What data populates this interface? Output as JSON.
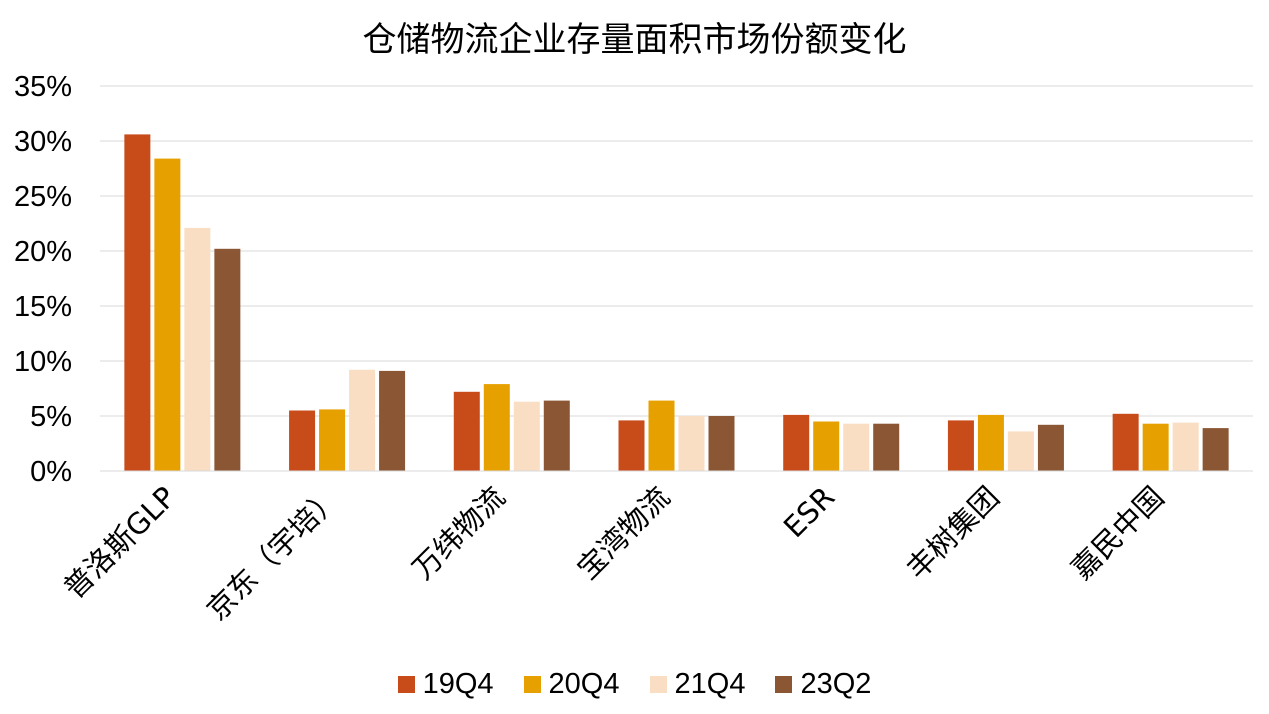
{
  "chart_data": {
    "type": "bar",
    "title": "仓储物流企业存量面积市场份额变化",
    "categories": [
      "普洛斯GLP",
      "京东（宇培）",
      "万纬物流",
      "宝湾物流",
      "ESR",
      "丰树集团",
      "嘉民中国"
    ],
    "series": [
      {
        "name": "19Q4",
        "color": "#C84B1A",
        "values": [
          30.6,
          5.5,
          7.2,
          4.6,
          5.1,
          4.6,
          5.2
        ]
      },
      {
        "name": "20Q4",
        "color": "#E6A000",
        "values": [
          28.4,
          5.6,
          7.9,
          6.4,
          4.5,
          5.1,
          4.3
        ]
      },
      {
        "name": "21Q4",
        "color": "#F9DEC4",
        "values": [
          22.1,
          9.2,
          6.3,
          5.0,
          4.3,
          3.6,
          4.4
        ]
      },
      {
        "name": "23Q2",
        "color": "#8B5634",
        "values": [
          20.2,
          9.1,
          6.4,
          5.0,
          4.3,
          4.2,
          3.9
        ]
      }
    ],
    "ylim": [
      0,
      35
    ],
    "yticks": [
      "0%",
      "5%",
      "10%",
      "15%",
      "20%",
      "25%",
      "30%",
      "35%"
    ],
    "grid": true,
    "legend_position": "bottom"
  }
}
